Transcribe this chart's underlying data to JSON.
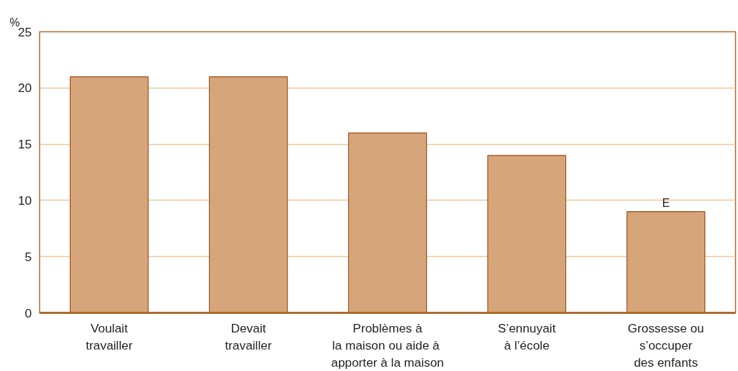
{
  "chart_data": {
    "type": "bar",
    "ylabel": "%",
    "categories": [
      "Voulait\ntravailler",
      "Devait\ntravailler",
      "Problèmes à\nla maison ou  aide à\napporter à la maison",
      "S’ennuyait\nà l’école",
      "Grossesse ou\ns’occuper\ndes enfants"
    ],
    "values": [
      21,
      21,
      16,
      14,
      9
    ],
    "color": "#d6a57a",
    "ylim": [
      0,
      25
    ],
    "yticks": [
      0,
      5,
      10,
      15,
      20,
      25
    ],
    "grid": "y",
    "annotations": [
      {
        "text": "E",
        "x": "Grossesse ou\ns’occuper\ndes enfants",
        "y": 9
      }
    ]
  }
}
